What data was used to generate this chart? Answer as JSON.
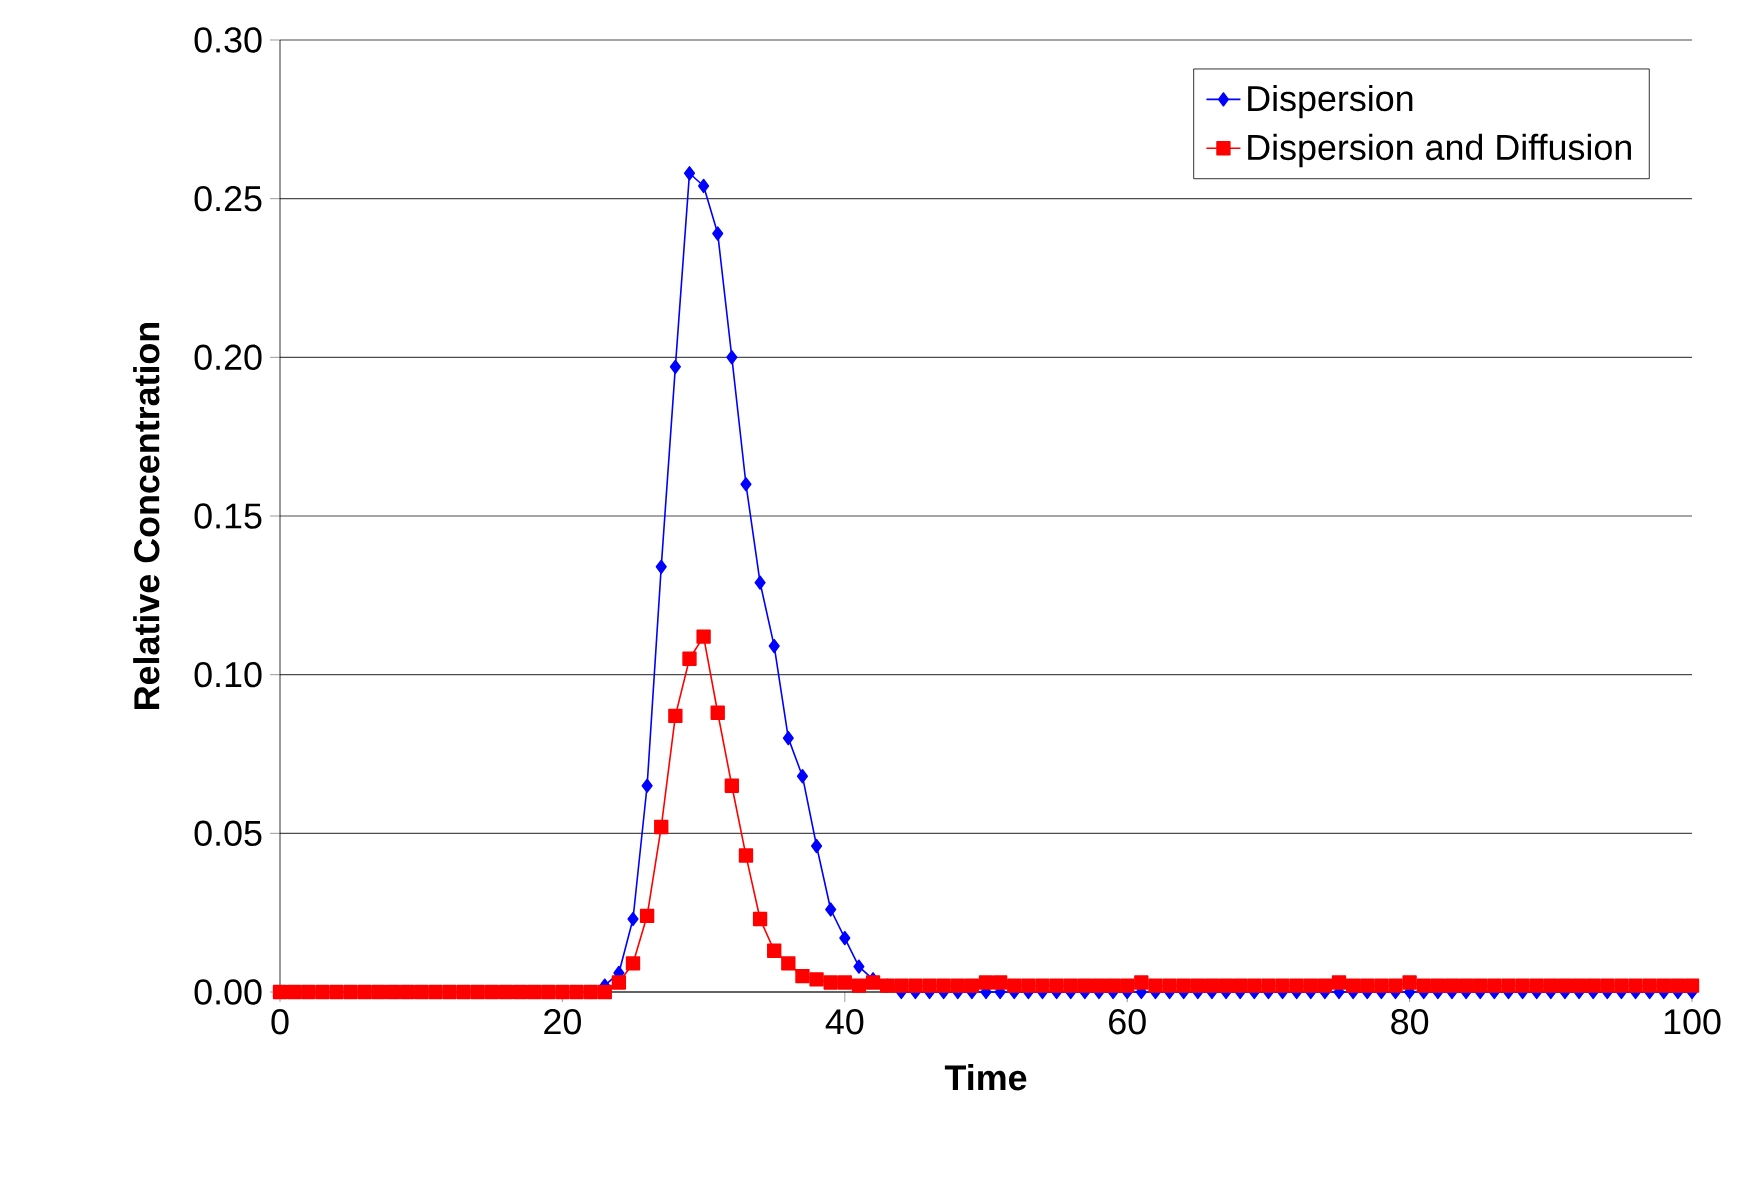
{
  "chart_data": {
    "type": "line",
    "xlabel": "Time",
    "ylabel": "Relative Concentration",
    "x": [
      0,
      1,
      2,
      3,
      4,
      5,
      6,
      7,
      8,
      9,
      10,
      11,
      12,
      13,
      14,
      15,
      16,
      17,
      18,
      19,
      20,
      21,
      22,
      23,
      24,
      25,
      26,
      27,
      28,
      29,
      30,
      31,
      32,
      33,
      34,
      35,
      36,
      37,
      38,
      39,
      40,
      41,
      42,
      43,
      44,
      45,
      46,
      47,
      48,
      49,
      50,
      51,
      52,
      53,
      54,
      55,
      56,
      57,
      58,
      59,
      60,
      61,
      62,
      63,
      64,
      65,
      66,
      67,
      68,
      69,
      70,
      71,
      72,
      73,
      74,
      75,
      76,
      77,
      78,
      79,
      80,
      81,
      82,
      83,
      84,
      85,
      86,
      87,
      88,
      89,
      90,
      91,
      92,
      93,
      94,
      95,
      96,
      97,
      98,
      99,
      100
    ],
    "series": [
      {
        "name": "Dispersion",
        "color": "#0000ff",
        "marker": "diamond",
        "values": [
          null,
          null,
          null,
          null,
          null,
          null,
          null,
          null,
          null,
          null,
          null,
          null,
          null,
          null,
          null,
          null,
          null,
          null,
          null,
          null,
          null,
          null,
          0,
          0.002,
          0.006,
          0.023,
          0.065,
          0.134,
          0.197,
          0.258,
          0.254,
          0.239,
          0.2,
          0.16,
          0.129,
          0.109,
          0.08,
          0.068,
          0.046,
          0.026,
          0.017,
          0.008,
          0.004,
          0.002,
          0,
          0,
          0,
          0,
          0,
          0,
          0,
          0,
          0,
          0,
          0,
          0,
          0,
          0,
          0,
          0,
          0,
          0,
          0,
          0,
          0,
          0,
          0,
          0,
          0,
          0,
          0,
          0,
          0,
          0,
          0,
          0,
          0,
          0,
          0,
          0,
          0,
          0,
          0,
          0,
          0,
          0,
          0,
          0,
          0,
          0,
          0,
          0,
          0,
          0,
          0,
          0,
          0,
          0,
          0,
          0,
          0
        ]
      },
      {
        "name": "Dispersion and Diffusion",
        "color": "#ff0000",
        "marker": "square",
        "values": [
          0,
          0,
          0,
          0,
          0,
          0,
          0,
          0,
          0,
          0,
          0,
          0,
          0,
          0,
          0,
          0,
          0,
          0,
          0,
          0,
          0,
          0,
          0,
          0,
          0.003,
          0.009,
          0.024,
          0.052,
          0.087,
          0.105,
          0.112,
          0.088,
          0.065,
          0.043,
          0.023,
          0.013,
          0.009,
          0.005,
          0.004,
          0.003,
          0.003,
          0.002,
          0.003,
          0.002,
          0.002,
          0.002,
          0.002,
          0.002,
          0.002,
          0.002,
          0.003,
          0.003,
          0.002,
          0.002,
          0.002,
          0.002,
          0.002,
          0.002,
          0.002,
          0.002,
          0.002,
          0.003,
          0.002,
          0.002,
          0.002,
          0.002,
          0.002,
          0.002,
          0.002,
          0.002,
          0.002,
          0.002,
          0.002,
          0.002,
          0.002,
          0.003,
          0.002,
          0.002,
          0.002,
          0.002,
          0.003,
          0.002,
          0.002,
          0.002,
          0.002,
          0.002,
          0.002,
          0.002,
          0.002,
          0.002,
          0.002,
          0.002,
          0.002,
          0.002,
          0.002,
          0.002,
          0.002,
          0.002,
          0.002,
          0.002,
          0.002
        ]
      }
    ],
    "xlim": [
      0,
      100
    ],
    "xticks": [
      0,
      20,
      40,
      60,
      80,
      100
    ],
    "ylim": [
      0,
      0.3
    ],
    "yticks": [
      {
        "value": 0,
        "label": "0.00"
      },
      {
        "value": 0.05,
        "label": "0.05"
      },
      {
        "value": 0.1,
        "label": "0.10"
      },
      {
        "value": 0.15,
        "label": "0.15"
      },
      {
        "value": 0.2,
        "label": "0.20"
      },
      {
        "value": 0.25,
        "label": "0.25"
      },
      {
        "value": 0.3,
        "label": "0.30"
      }
    ],
    "grid": "y",
    "legend": "top right",
    "line_style": "solid"
  }
}
